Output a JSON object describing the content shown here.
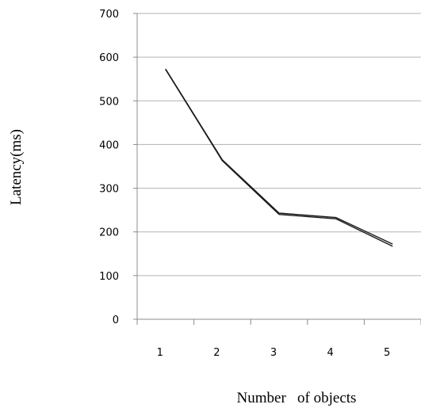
{
  "chart_data": {
    "type": "line",
    "title": "",
    "xlabel": "Number   of objects",
    "ylabel": "Latency(ms)",
    "categories": [
      "1",
      "2",
      "3",
      "4",
      "5"
    ],
    "y_ticks": [
      "0",
      "100",
      "200",
      "300",
      "400",
      "500",
      "600",
      "700"
    ],
    "ylim": [
      0,
      700
    ],
    "grid": true,
    "legend": "none",
    "series": [
      {
        "values": [
          573,
          365,
          243,
          233,
          172
        ]
      },
      {
        "values": [
          572,
          363,
          240,
          230,
          167
        ]
      }
    ],
    "colors": {
      "series": "#1a1a1a",
      "grid": "#b3b3b3",
      "axis": "#8c8c8c"
    }
  }
}
